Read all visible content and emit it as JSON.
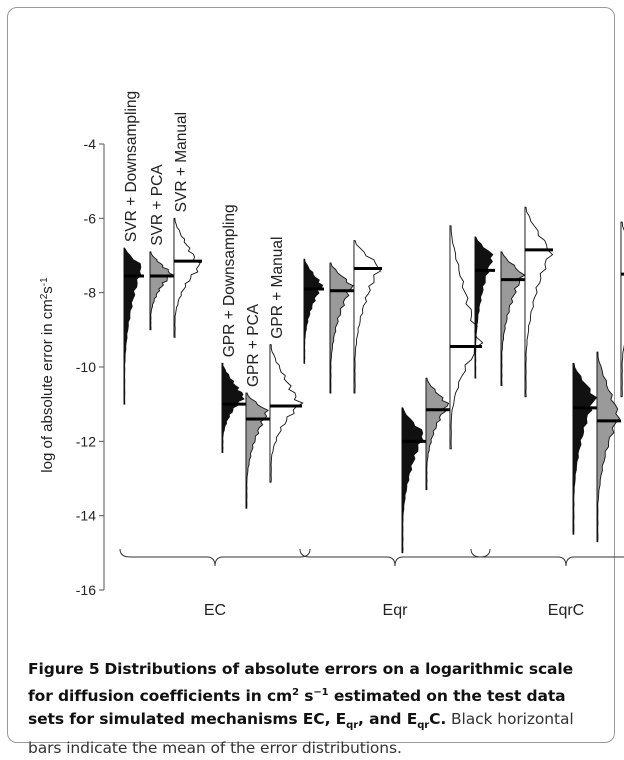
{
  "chart_data": {
    "type": "violin",
    "ylabel_text": "log of absolute error in cm",
    "ylabel_sup": "2",
    "ylabel_unit_s": "s",
    "ylabel_sup2": "-1",
    "ylim": [
      -16,
      -4
    ],
    "yticks": [
      -4,
      -6,
      -8,
      -10,
      -12,
      -14,
      -16
    ],
    "ytick_labels": [
      "-4",
      "-6",
      "-8",
      "-10",
      "-12",
      "-14",
      "-16"
    ],
    "groups": [
      "EC",
      "Eqr",
      "EqrC"
    ],
    "series_labels": [
      "SVR + Downsampling",
      "SVR + PCA",
      "SVR + Manual",
      "GPR + Downsampling",
      "GPR + PCA",
      "GPR + Manual"
    ],
    "series_colors": [
      "#111111",
      "#9a9a9a",
      "#ffffff",
      "#111111",
      "#9a9a9a",
      "#ffffff"
    ],
    "distributions": [
      {
        "group": "EC",
        "series": "SVR + Downsampling",
        "min": -11.0,
        "max": -6.8,
        "peak": -7.3,
        "mean": -7.55
      },
      {
        "group": "EC",
        "series": "SVR + PCA",
        "min": -9.0,
        "max": -6.9,
        "peak": -7.5,
        "mean": -7.55
      },
      {
        "group": "EC",
        "series": "SVR + Manual",
        "min": -9.2,
        "max": -6.0,
        "peak": -7.3,
        "mean": -7.15
      },
      {
        "group": "EC",
        "series": "GPR + Downsampling",
        "min": -12.3,
        "max": -9.9,
        "peak": -10.8,
        "mean": -11.0
      },
      {
        "group": "EC",
        "series": "GPR + PCA",
        "min": -13.8,
        "max": -10.7,
        "peak": -11.2,
        "mean": -11.4
      },
      {
        "group": "EC",
        "series": "GPR + Manual",
        "min": -13.1,
        "max": -9.4,
        "peak": -11.0,
        "mean": -11.05
      },
      {
        "group": "Eqr",
        "series": "SVR + Downsampling",
        "min": -9.9,
        "max": -7.1,
        "peak": -7.8,
        "mean": -7.9
      },
      {
        "group": "Eqr",
        "series": "SVR + PCA",
        "min": -10.7,
        "max": -7.2,
        "peak": -7.8,
        "mean": -7.95
      },
      {
        "group": "Eqr",
        "series": "SVR + Manual",
        "min": -10.7,
        "max": -6.6,
        "peak": -7.3,
        "mean": -7.35
      },
      {
        "group": "Eqr",
        "series": "GPR + Downsampling",
        "min": -15.0,
        "max": -11.1,
        "peak": -11.8,
        "mean": -12.0
      },
      {
        "group": "Eqr",
        "series": "GPR + PCA",
        "min": -13.3,
        "max": -10.3,
        "peak": -11.0,
        "mean": -11.15
      },
      {
        "group": "Eqr",
        "series": "GPR + Manual",
        "min": -12.2,
        "max": -6.2,
        "peak": -9.4,
        "mean": -9.45
      },
      {
        "group": "EqrC",
        "series": "SVR + Downsampling",
        "min": -10.3,
        "max": -6.5,
        "peak": -7.0,
        "mean": -7.4
      },
      {
        "group": "EqrC",
        "series": "SVR + PCA",
        "min": -10.5,
        "max": -6.9,
        "peak": -7.5,
        "mean": -7.65
      },
      {
        "group": "EqrC",
        "series": "SVR + Manual",
        "min": -10.8,
        "max": -5.7,
        "peak": -6.9,
        "mean": -6.85
      },
      {
        "group": "EqrC",
        "series": "GPR + Downsampling",
        "min": -14.5,
        "max": -9.9,
        "peak": -10.8,
        "mean": -11.1
      },
      {
        "group": "EqrC",
        "series": "GPR + PCA",
        "min": -14.7,
        "max": -9.6,
        "peak": -11.3,
        "mean": -11.45
      },
      {
        "group": "EqrC",
        "series": "GPR + Manual",
        "min": -10.8,
        "max": -6.1,
        "peak": -7.5,
        "mean": -7.5
      }
    ]
  },
  "caption": {
    "figure_label": "Figure 5",
    "title_part1": "Distributions of absolute errors on a logarithmic scale for diffusion coefficients in cm",
    "title_sup1": "2",
    "title_part2": " s",
    "title_sup2": "−1",
    "title_part3": " estimated on the test data sets for simulated mechanisms EC, E",
    "title_sub1": "qr",
    "title_part4": ", and E",
    "title_sub2": "qr",
    "title_part5": "C.",
    "body": "Black horizontal bars indicate the mean of the error distributions."
  }
}
